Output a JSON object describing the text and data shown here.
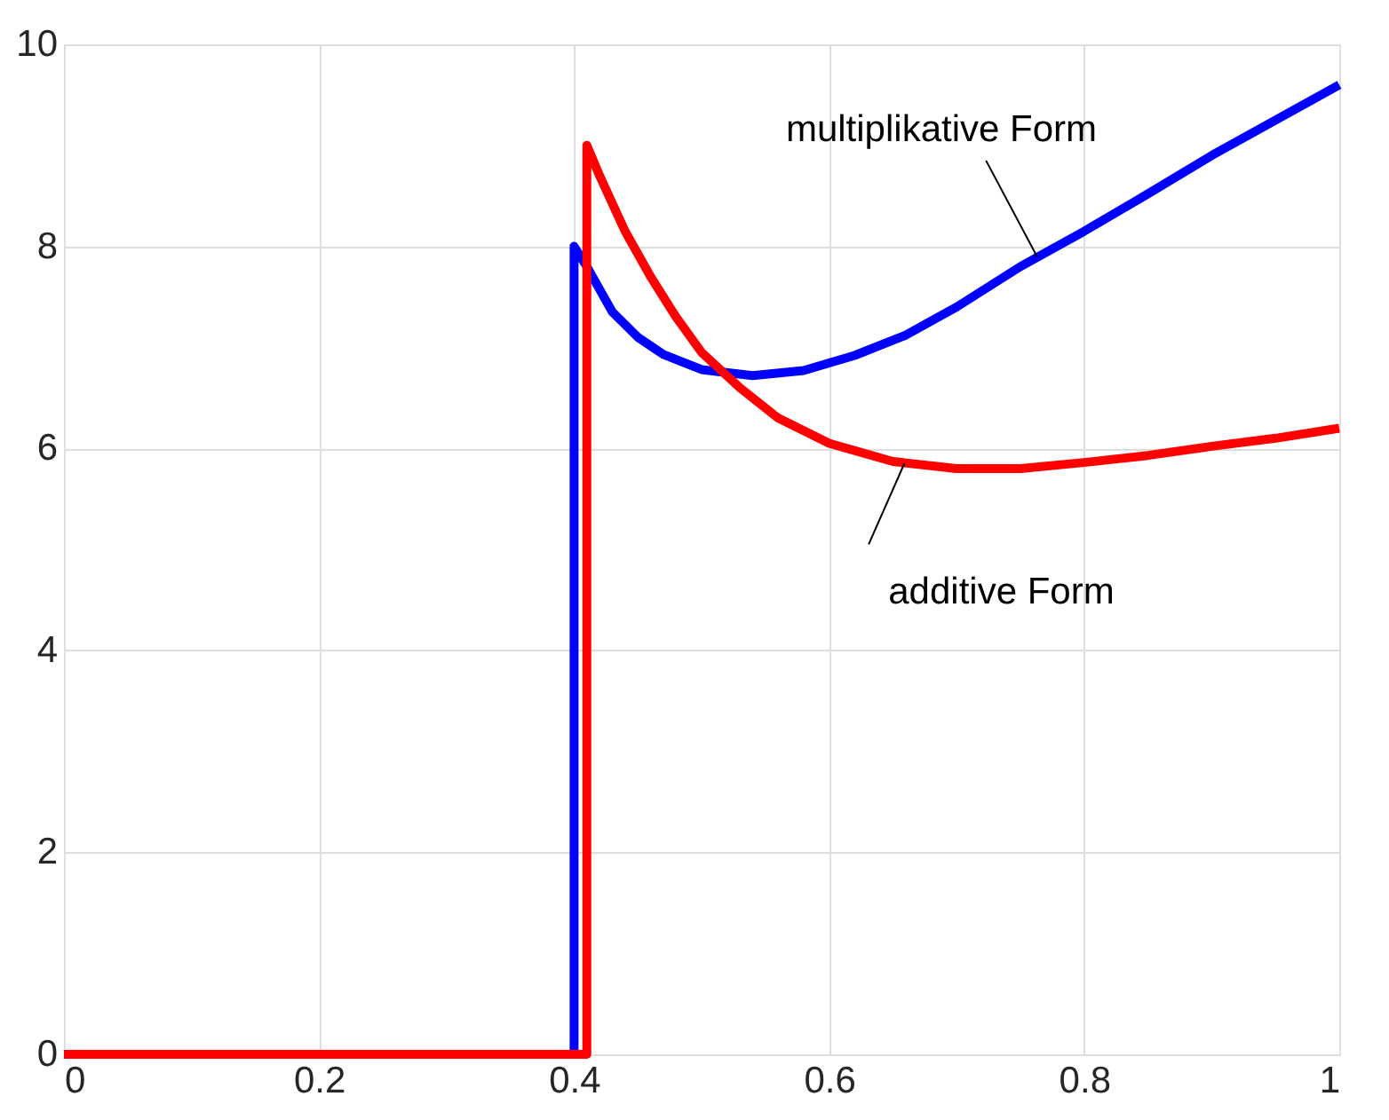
{
  "chart_data": {
    "type": "line",
    "xlim": [
      0,
      1
    ],
    "ylim": [
      0,
      10
    ],
    "xticks": [
      0,
      0.2,
      0.4,
      0.6,
      0.8,
      1
    ],
    "yticks": [
      0,
      2,
      4,
      6,
      8,
      10
    ],
    "grid": true,
    "marker": "none",
    "line_style": "solid",
    "series": [
      {
        "color": "#0000ff",
        "x": [
          0,
          0.4,
          0.4,
          0.41,
          0.43,
          0.45,
          0.47,
          0.5,
          0.54,
          0.58,
          0.62,
          0.66,
          0.7,
          0.75,
          0.8,
          0.85,
          0.9,
          0.95,
          1.0
        ],
        "values": [
          0,
          0,
          8,
          7.8,
          7.35,
          7.1,
          6.93,
          6.78,
          6.72,
          6.77,
          6.92,
          7.12,
          7.4,
          7.8,
          8.15,
          8.52,
          8.9,
          9.25,
          9.6
        ]
      },
      {
        "color": "#ff0000",
        "x": [
          0,
          0.41,
          0.41,
          0.42,
          0.44,
          0.46,
          0.48,
          0.5,
          0.53,
          0.56,
          0.6,
          0.65,
          0.7,
          0.75,
          0.8,
          0.85,
          0.9,
          0.95,
          1.0
        ],
        "values": [
          0,
          0,
          9.0,
          8.7,
          8.15,
          7.7,
          7.3,
          6.95,
          6.6,
          6.3,
          6.05,
          5.87,
          5.8,
          5.8,
          5.86,
          5.93,
          6.02,
          6.1,
          6.2
        ]
      }
    ],
    "annotations": [
      {
        "text": "multiplikative Form",
        "x": 0.763,
        "y": 7.9
      },
      {
        "text": "additive Form",
        "x": 0.659,
        "y": 5.85
      }
    ]
  }
}
